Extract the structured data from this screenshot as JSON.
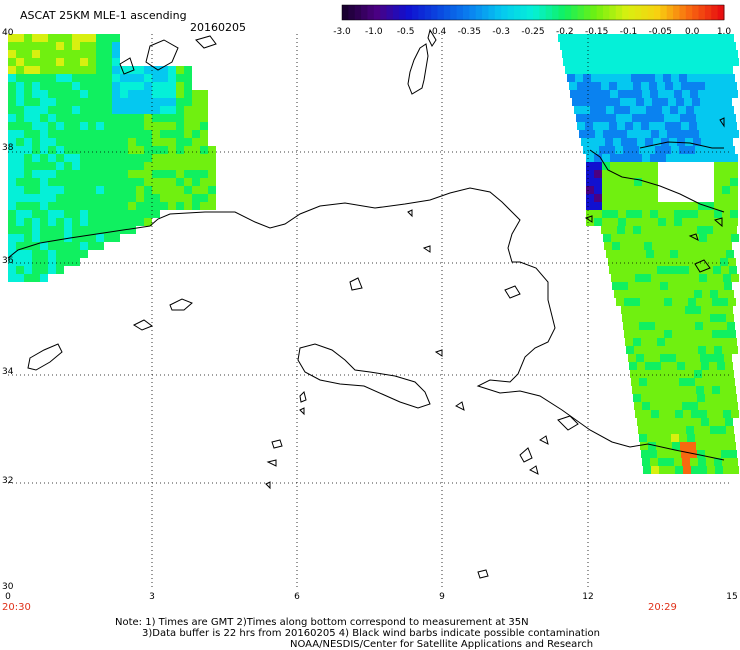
{
  "title": "ASCAT 25KM MLE-1 ascending",
  "date": "20160205",
  "colorbar": {
    "labels": [
      "-3.0",
      "-1.0",
      "-0.5",
      "-0.4",
      "-0.35",
      "-0.3",
      "-0.25",
      "-0.2",
      "-0.15",
      "-0.1",
      "-0.05",
      "0.0",
      "1.0"
    ],
    "colors": [
      "#1a0030",
      "#4b0082",
      "#1010d0",
      "#0a48e0",
      "#0a82f0",
      "#05c8f0",
      "#05f0d8",
      "#10f060",
      "#70f010",
      "#d8f010",
      "#f8d010",
      "#f86810",
      "#e81010"
    ]
  },
  "axes": {
    "y_labels": [
      "40",
      "38",
      "36",
      "34",
      "32",
      "30"
    ],
    "x_labels": [
      "0",
      "3",
      "6",
      "9",
      "12",
      "15"
    ]
  },
  "times": {
    "left": "20:30",
    "right": "20:29"
  },
  "notes": {
    "line1": "Note: 1) Times are GMT 2)Times along bottom correspond to measurement at 35N",
    "line2": "3)Data buffer is 22 hrs from 20160205 4) Black wind barbs indicate possible contamination",
    "line3": "NOAA/NESDIS/Center for Satellite Applications and Research"
  }
}
